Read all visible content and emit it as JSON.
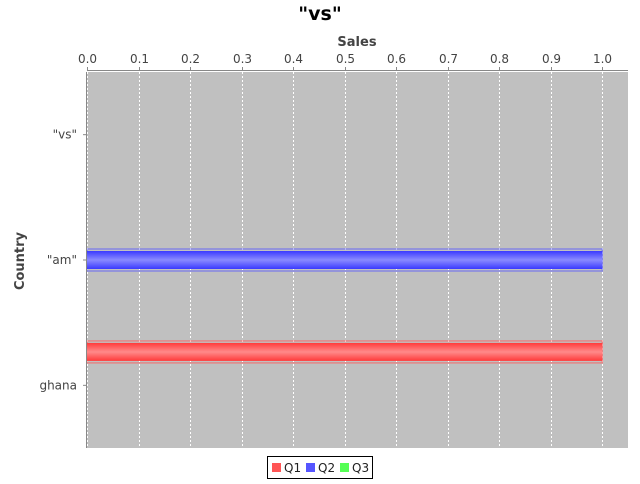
{
  "chart_data": {
    "type": "bar",
    "orientation": "horizontal",
    "title": "\"vs\"",
    "xlabel": "Sales",
    "ylabel": "Country",
    "categories": [
      "\"vs\"",
      "\"am\"",
      "ghana"
    ],
    "series": [
      {
        "name": "Q1",
        "color": "#ff5555",
        "values": [
          null,
          null,
          1.0
        ]
      },
      {
        "name": "Q2",
        "color": "#5555ff",
        "values": [
          null,
          1.0,
          null
        ]
      },
      {
        "name": "Q3",
        "color": "#55ff55",
        "values": [
          null,
          null,
          null
        ]
      }
    ],
    "xlim": [
      0.0,
      1.05
    ],
    "ticks": [
      "0.0",
      "0.1",
      "0.2",
      "0.3",
      "0.4",
      "0.5",
      "0.6",
      "0.7",
      "0.8",
      "0.9",
      "1.0"
    ],
    "grid": true,
    "legend_position": "bottom",
    "plot_background": "#c0c0c0"
  }
}
